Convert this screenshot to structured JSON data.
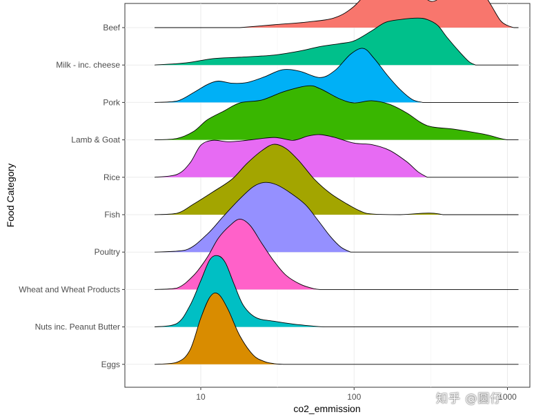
{
  "chart_data": {
    "type": "ridgeline",
    "x_scale": "log10",
    "xlabel": "co2_emmission",
    "ylabel": "Food Category",
    "x_range": [
      3.2,
      1400
    ],
    "x_ticks": [
      {
        "value": 10,
        "label": "10"
      },
      {
        "value": 100,
        "label": "100"
      },
      {
        "value": 1000,
        "label": "1000"
      }
    ],
    "grid": true,
    "ridge_max_height_rows": 1.9,
    "categories": [
      {
        "name": "Eggs",
        "color": "#D98C00",
        "x_span": [
          5,
          1180
        ],
        "density": [
          [
            5,
            0
          ],
          [
            7,
            0.03
          ],
          [
            8.5,
            0.2
          ],
          [
            10,
            0.65
          ],
          [
            11.5,
            0.95
          ],
          [
            13,
            0.99
          ],
          [
            15,
            0.78
          ],
          [
            18,
            0.4
          ],
          [
            22,
            0.13
          ],
          [
            26,
            0.04
          ],
          [
            30,
            0.01
          ],
          [
            35,
            0
          ]
        ]
      },
      {
        "name": "Nuts inc. Peanut Butter",
        "color": "#00BFC4",
        "x_span": [
          5,
          1180
        ],
        "density": [
          [
            5,
            0
          ],
          [
            7,
            0.05
          ],
          [
            8.5,
            0.3
          ],
          [
            10,
            0.65
          ],
          [
            11.5,
            0.95
          ],
          [
            13,
            1.0
          ],
          [
            14.5,
            0.9
          ],
          [
            16.5,
            0.6
          ],
          [
            19,
            0.3
          ],
          [
            23,
            0.13
          ],
          [
            30,
            0.08
          ],
          [
            40,
            0.04
          ],
          [
            55,
            0.01
          ],
          [
            65,
            0
          ]
        ]
      },
      {
        "name": "Wheat and Wheat Products",
        "color": "#FF61C9",
        "x_span": [
          5,
          1180
        ],
        "density": [
          [
            5,
            0
          ],
          [
            7,
            0.02
          ],
          [
            9,
            0.2
          ],
          [
            11,
            0.45
          ],
          [
            13,
            0.72
          ],
          [
            15.5,
            0.9
          ],
          [
            18,
            0.99
          ],
          [
            21,
            0.9
          ],
          [
            25,
            0.65
          ],
          [
            30,
            0.4
          ],
          [
            36,
            0.2
          ],
          [
            45,
            0.07
          ],
          [
            55,
            0.01
          ],
          [
            60,
            0
          ]
        ]
      },
      {
        "name": "Poultry",
        "color": "#9590FF",
        "x_span": [
          5,
          1180
        ],
        "density": [
          [
            5,
            0
          ],
          [
            8,
            0.03
          ],
          [
            11,
            0.25
          ],
          [
            14,
            0.5
          ],
          [
            18,
            0.75
          ],
          [
            22,
            0.92
          ],
          [
            26,
            0.98
          ],
          [
            31,
            0.95
          ],
          [
            38,
            0.84
          ],
          [
            48,
            0.67
          ],
          [
            58,
            0.45
          ],
          [
            70,
            0.22
          ],
          [
            82,
            0.07
          ],
          [
            95,
            0
          ]
        ]
      },
      {
        "name": "Fish",
        "color": "#A3A500",
        "x_span": [
          5,
          1180
        ],
        "density": [
          [
            5,
            0
          ],
          [
            7,
            0.02
          ],
          [
            9,
            0.15
          ],
          [
            12,
            0.32
          ],
          [
            16,
            0.5
          ],
          [
            20,
            0.72
          ],
          [
            25,
            0.9
          ],
          [
            30,
            0.99
          ],
          [
            36,
            0.93
          ],
          [
            44,
            0.75
          ],
          [
            55,
            0.5
          ],
          [
            70,
            0.3
          ],
          [
            90,
            0.15
          ],
          [
            110,
            0.05
          ],
          [
            130,
            0.01
          ],
          [
            200,
            0
          ],
          [
            280,
            0.02
          ],
          [
            330,
            0.02
          ],
          [
            380,
            0
          ]
        ]
      },
      {
        "name": "Rice",
        "color": "#E76BF3",
        "x_span": [
          5,
          1180
        ],
        "density": [
          [
            5,
            0
          ],
          [
            7,
            0.04
          ],
          [
            8.5,
            0.2
          ],
          [
            10,
            0.45
          ],
          [
            12,
            0.52
          ],
          [
            15,
            0.5
          ],
          [
            20,
            0.52
          ],
          [
            30,
            0.56
          ],
          [
            40,
            0.52
          ],
          [
            50,
            0.58
          ],
          [
            60,
            0.6
          ],
          [
            75,
            0.56
          ],
          [
            100,
            0.48
          ],
          [
            130,
            0.46
          ],
          [
            170,
            0.38
          ],
          [
            220,
            0.22
          ],
          [
            260,
            0.08
          ],
          [
            300,
            0
          ]
        ]
      },
      {
        "name": "Lamb & Goat",
        "color": "#39B600",
        "x_span": [
          5,
          1180
        ],
        "density": [
          [
            5,
            0
          ],
          [
            7,
            0.02
          ],
          [
            9,
            0.12
          ],
          [
            11,
            0.28
          ],
          [
            14,
            0.4
          ],
          [
            18,
            0.52
          ],
          [
            25,
            0.56
          ],
          [
            35,
            0.68
          ],
          [
            50,
            0.76
          ],
          [
            60,
            0.72
          ],
          [
            80,
            0.58
          ],
          [
            100,
            0.52
          ],
          [
            130,
            0.55
          ],
          [
            170,
            0.5
          ],
          [
            220,
            0.38
          ],
          [
            300,
            0.2
          ],
          [
            450,
            0.15
          ],
          [
            700,
            0.08
          ],
          [
            900,
            0.02
          ],
          [
            1000,
            0
          ]
        ]
      },
      {
        "name": "Pork",
        "color": "#00B0F6",
        "x_span": [
          5,
          1180
        ],
        "density": [
          [
            5,
            0
          ],
          [
            7,
            0.02
          ],
          [
            9,
            0.14
          ],
          [
            11,
            0.25
          ],
          [
            13,
            0.3
          ],
          [
            16,
            0.27
          ],
          [
            20,
            0.28
          ],
          [
            26,
            0.36
          ],
          [
            34,
            0.46
          ],
          [
            44,
            0.44
          ],
          [
            60,
            0.35
          ],
          [
            75,
            0.45
          ],
          [
            95,
            0.68
          ],
          [
            115,
            0.76
          ],
          [
            135,
            0.62
          ],
          [
            165,
            0.38
          ],
          [
            200,
            0.18
          ],
          [
            240,
            0.04
          ],
          [
            280,
            0
          ]
        ]
      },
      {
        "name": "Milk - inc. cheese",
        "color": "#00C08B",
        "x_span": [
          5,
          1180
        ],
        "density": [
          [
            5,
            0
          ],
          [
            8,
            0.03
          ],
          [
            12,
            0.09
          ],
          [
            18,
            0.11
          ],
          [
            30,
            0.14
          ],
          [
            45,
            0.2
          ],
          [
            60,
            0.26
          ],
          [
            80,
            0.3
          ],
          [
            100,
            0.34
          ],
          [
            130,
            0.48
          ],
          [
            160,
            0.6
          ],
          [
            200,
            0.64
          ],
          [
            260,
            0.66
          ],
          [
            300,
            0.64
          ],
          [
            350,
            0.56
          ],
          [
            400,
            0.4
          ],
          [
            480,
            0.2
          ],
          [
            560,
            0.05
          ],
          [
            620,
            0
          ]
        ]
      },
      {
        "name": "Beef",
        "color": "#F8766D",
        "x_span": [
          5,
          1180
        ],
        "density": [
          [
            18,
            0
          ],
          [
            30,
            0.04
          ],
          [
            50,
            0.08
          ],
          [
            75,
            0.14
          ],
          [
            100,
            0.3
          ],
          [
            130,
            0.58
          ],
          [
            160,
            0.8
          ],
          [
            190,
            0.85
          ],
          [
            230,
            0.72
          ],
          [
            290,
            0.42
          ],
          [
            340,
            0.38
          ],
          [
            400,
            0.55
          ],
          [
            480,
            0.75
          ],
          [
            560,
            0.78
          ],
          [
            650,
            0.6
          ],
          [
            780,
            0.32
          ],
          [
            900,
            0.1
          ],
          [
            1000,
            0.03
          ],
          [
            1100,
            0
          ]
        ]
      }
    ]
  },
  "watermark": "知乎 @圆仔"
}
